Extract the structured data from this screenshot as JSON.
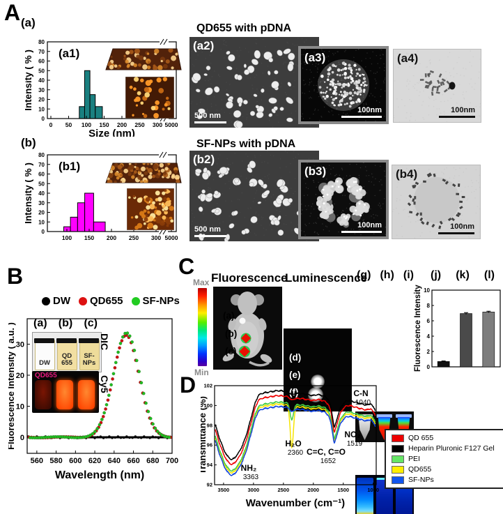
{
  "panelA": {
    "label": "A",
    "a": {
      "label": "(a)"
    },
    "b": {
      "label": "(b)"
    },
    "row_a": {
      "title": "QD655 with pDNA",
      "img2": "(a2)",
      "img2_scale": "500 nm",
      "img3": "(a3)",
      "img3_scale": "100nm",
      "img4": "(a4)",
      "img4_scale": "100nm"
    },
    "row_b": {
      "title": "SF-NPs with pDNA",
      "img2": "(b2)",
      "img2_scale": "500 nm",
      "img3": "(b3)",
      "img3_scale": "100nm",
      "img4": "(b4)",
      "img4_scale": "100nm"
    }
  },
  "panelB": {
    "label": "B",
    "legend": [
      {
        "name": "DW",
        "color": "#000000"
      },
      {
        "name": "QD655",
        "color": "#dd1111"
      },
      {
        "name": "SF-NPs",
        "color": "#22cc22"
      }
    ],
    "inset": {
      "labels": [
        "(a)",
        "(b)",
        "(c)"
      ],
      "vials": [
        "DW",
        "QD 655",
        "SF- NPs"
      ],
      "dic_caption": "DIC",
      "cy5_caption": "Cy5",
      "cy5_label": "QD655"
    }
  },
  "panelC": {
    "label": "C",
    "titles": {
      "fluorescence": "Fluorescence",
      "luminescence": "Luminescence"
    },
    "scale": {
      "max": "Max",
      "min": "Min"
    },
    "mouse_labels": [
      "(a)",
      "(b)",
      "(c)"
    ],
    "lum_labels": [
      "(d)",
      "(e)",
      "(f)"
    ],
    "tube_labels": [
      "(g)",
      "(h)",
      "(i)"
    ]
  },
  "panelD": {
    "label": "D",
    "legend": [
      {
        "label": "QD 655",
        "color": "#ee0000"
      },
      {
        "label": "Heparin Pluronic F127 Gel",
        "color": "#000000"
      },
      {
        "label": "PEI",
        "color": "#66e666"
      },
      {
        "label": "QD655",
        "color": "#ffee00"
      },
      {
        "label": "SF-NPs",
        "color": "#1155ee"
      }
    ]
  },
  "chart_data": [
    {
      "id": "a1",
      "type": "histogram",
      "inner_label": "(a1)",
      "ylabel": "Intensity ( % )",
      "xlabel": "Size (nm)",
      "ylim": [
        0,
        80
      ],
      "ytick_step": 10,
      "xticks": [
        0,
        50,
        100,
        150,
        200,
        250,
        300
      ],
      "break_tick": 5000,
      "bar_color": "#1a8080",
      "bars": [
        [
          80,
          95,
          12.5
        ],
        [
          95,
          110,
          50
        ],
        [
          110,
          125,
          25
        ],
        [
          125,
          145,
          12.5
        ]
      ],
      "xmap": {
        "v0": 0,
        "p0": 5,
        "v1": 300,
        "p1": 158,
        "break_p": 178
      },
      "frame": {
        "l": 32,
        "r": 217,
        "t": 22,
        "b": 132
      }
    },
    {
      "id": "b1",
      "type": "histogram",
      "inner_label": "(b1)",
      "ylabel": "Intensity ( % )",
      "xlabel": null,
      "ylim": [
        0,
        80
      ],
      "ytick_step": 10,
      "xticks": [
        100,
        150,
        200,
        250,
        300
      ],
      "break_tick": 5000,
      "bar_color": "#ff00ff",
      "bars": [
        [
          93,
          108,
          5
        ],
        [
          108,
          124,
          15
        ],
        [
          124,
          140,
          30
        ],
        [
          140,
          160,
          40
        ],
        [
          160,
          186,
          10
        ]
      ],
      "xmap": {
        "v0": 100,
        "p0": 28,
        "v1": 300,
        "p1": 156,
        "break_p": 178
      },
      "frame": {
        "l": 32,
        "r": 217,
        "t": 14,
        "b": 124
      }
    },
    {
      "id": "specB",
      "type": "spectrum",
      "xlabel": "Wavelength (nm)",
      "ylabel": "Fluorescence Intensity ( a.u. )",
      "xlim": [
        550,
        700
      ],
      "xticks": [
        560,
        580,
        600,
        620,
        640,
        660,
        680,
        700
      ],
      "yticks": [
        0,
        10,
        20,
        30
      ],
      "series": [
        {
          "name": "DW",
          "color": "#000000",
          "kind": "flat",
          "value": 0
        },
        {
          "name": "QD655",
          "color": "#cc1111",
          "kind": "gauss",
          "center": 652.5,
          "sigma": 13.2,
          "amp": 33.0
        },
        {
          "name": "SF-NPs",
          "color": "#22bb22",
          "kind": "gauss",
          "center": 652.8,
          "sigma": 13.4,
          "amp": 33.8
        }
      ]
    },
    {
      "id": "barC",
      "type": "bar",
      "ylabel": "Fluorescence Intensity",
      "categories": [
        "(j)",
        "(k)",
        "(l)"
      ],
      "values": [
        0.7,
        6.95,
        7.15
      ],
      "errors": [
        0.07,
        0.12,
        0.1
      ],
      "colors": [
        "#101010",
        "#4a4a4a",
        "#7d7d7d"
      ],
      "ylim": [
        0,
        10
      ],
      "yticks": [
        0,
        2,
        4,
        6,
        8,
        10
      ]
    },
    {
      "id": "ftir",
      "type": "ftir",
      "xlabel": "Wavenumber (cm⁻¹)",
      "ylabel": "Transmittance (%)",
      "xlim": [
        3650,
        950
      ],
      "xticks": [
        3500,
        3000,
        2500,
        2000,
        1500,
        1000
      ],
      "ylim": [
        92,
        102
      ],
      "yticks": [
        92,
        94,
        96,
        98,
        100,
        102
      ],
      "base_points": [
        [
          3650,
          98.3
        ],
        [
          3580,
          96.9
        ],
        [
          3500,
          95.6
        ],
        [
          3440,
          94.9
        ],
        [
          3400,
          94.7
        ],
        [
          3363,
          94.5
        ],
        [
          3320,
          94.7
        ],
        [
          3260,
          95.1
        ],
        [
          3180,
          96.0
        ],
        [
          3100,
          97.4
        ],
        [
          3030,
          99.0
        ],
        [
          2970,
          100.3
        ],
        [
          2920,
          101.0
        ],
        [
          2870,
          101.2
        ],
        [
          2800,
          101.3
        ],
        [
          2700,
          101.4
        ],
        [
          2600,
          101.5
        ],
        [
          2500,
          101.45
        ],
        [
          2440,
          101.4
        ],
        [
          2360,
          101.25
        ],
        [
          2280,
          101.2
        ],
        [
          2200,
          101.2
        ],
        [
          2100,
          101.1
        ],
        [
          2000,
          101.0
        ],
        [
          1940,
          101.1
        ],
        [
          1880,
          101.05
        ],
        [
          1800,
          100.9
        ],
        [
          1750,
          100.6
        ],
        [
          1705,
          99.8
        ],
        [
          1675,
          98.7
        ],
        [
          1652,
          97.7
        ],
        [
          1625,
          98.2
        ],
        [
          1590,
          99.0
        ],
        [
          1550,
          99.7
        ],
        [
          1500,
          100.2
        ],
        [
          1450,
          100.45
        ],
        [
          1400,
          100.5
        ],
        [
          1340,
          100.4
        ],
        [
          1280,
          100.3
        ],
        [
          1220,
          100.2
        ],
        [
          1160,
          100.1
        ],
        [
          1100,
          100.05
        ],
        [
          1060,
          100.15
        ],
        [
          1040,
          100.2
        ],
        [
          1010,
          99.9
        ],
        [
          980,
          99.7
        ],
        [
          960,
          99.5
        ]
      ],
      "series": [
        {
          "name": "QD655",
          "color": "#f5e400",
          "offset": -1.35,
          "dip2360": 4.2
        },
        {
          "name": "PEI",
          "color": "#44cc44",
          "offset": -1.15,
          "dip2360": 1.6
        },
        {
          "name": "SF-NPs",
          "color": "#1144dd",
          "offset": -1.6,
          "dip2360": 0.3
        },
        {
          "name": "QD 655",
          "color": "#ee0000",
          "offset": -0.5,
          "dip2360": 0.2
        },
        {
          "name": "Heparin Pluronic F127 Gel",
          "color": "#000000",
          "offset": 0,
          "dip2360": 0.15
        }
      ],
      "annotations": [
        {
          "t": "C-N",
          "v": "1040",
          "x": 230,
          "y": 22
        },
        {
          "t": "NO₂",
          "v": "1519",
          "x": 218,
          "y": 81
        },
        {
          "t": "C=C, C=O",
          "v": "1652",
          "x": 180,
          "y": 106
        },
        {
          "t": "H₂O",
          "v": "2360",
          "x": 133,
          "y": 94
        },
        {
          "t": "NH₂",
          "v": "3363",
          "x": 69,
          "y": 129
        }
      ]
    }
  ]
}
